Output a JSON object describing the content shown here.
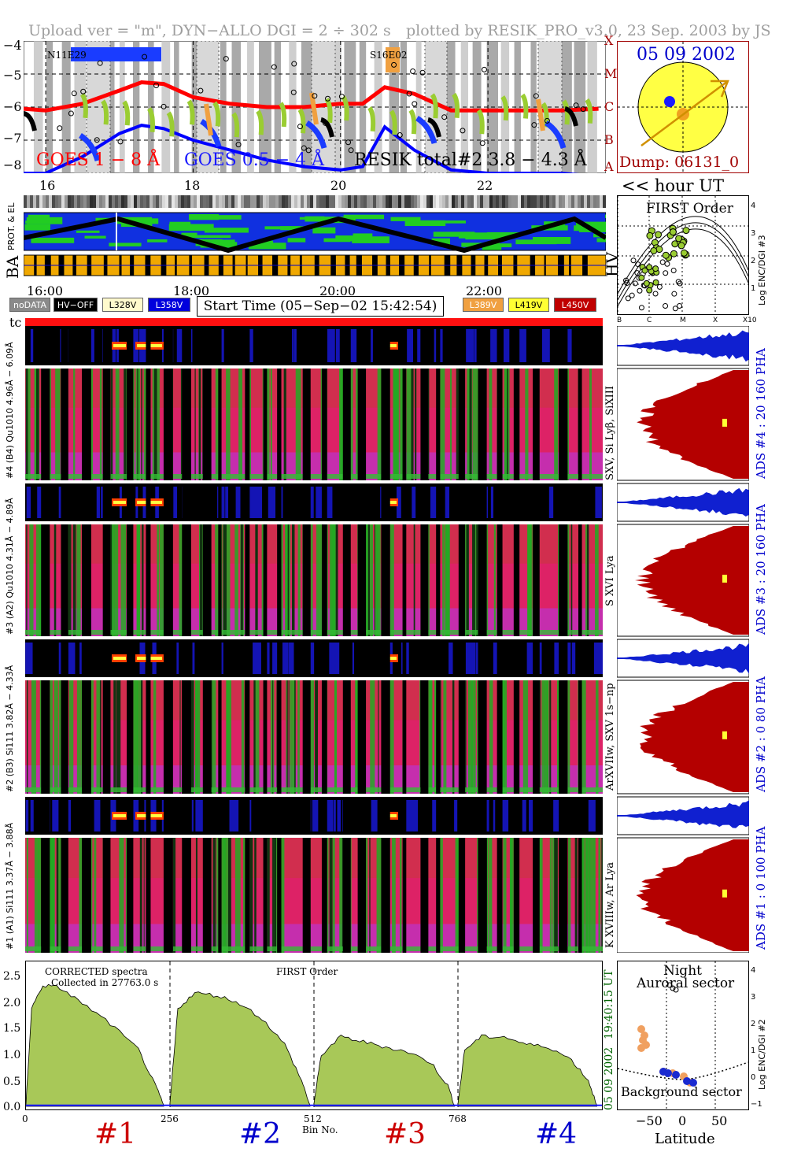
{
  "header": {
    "left": "Upload ver = \"m\", DYN−ALLO DGI =   2 ÷ 302 s",
    "right": "plotted by RESIK_PRO_v3.0, 23 Sep. 2003 by JS"
  },
  "goes_panel": {
    "y_ticks": [
      "−4",
      "−5",
      "−6",
      "−7",
      "−8"
    ],
    "flare_classes": [
      "X",
      "M",
      "C",
      "B",
      "A"
    ],
    "label_goes_long": "GOES 1 − 8 Å",
    "label_goes_short": "GOES 0.5 − 4 Å",
    "label_resik": "RESIK total#2  3.8 − 4.3 Å",
    "region_1": "N11E29",
    "region_2": "S16E02",
    "colors": {
      "goes_long": "#ff0000",
      "goes_short": "#0000ff",
      "resik": "#9acd32"
    }
  },
  "sun_panel": {
    "date": "05 09 2002",
    "dump": "Dump: 06131_0"
  },
  "hour_axis": {
    "labels": [
      "16",
      "18",
      "20",
      "22"
    ],
    "unit_label": "<< hour UT",
    "time_labels": [
      "16:00",
      "18:00",
      "20:00",
      "22:00"
    ]
  },
  "status_rows": {
    "prot_el": "PROT. & EL",
    "ba": "BA",
    "hv": "HV"
  },
  "legend": {
    "nodata": "noDATA",
    "hvoff": "HV−OFF",
    "v1": "L328V",
    "v2": "L358V",
    "start_time": "Start Time (05−Sep−02 15:42:54)",
    "v3": "L389V",
    "v4": "L419V",
    "v5": "L450V",
    "tc": "tc"
  },
  "first_order_panel": {
    "title": "FIRST Order",
    "ylabel": "Log ENC/DGI #3",
    "y_ticks": [
      "4",
      "3",
      "2",
      "1",
      "0"
    ],
    "x_ticks": [
      "B",
      "C",
      "M",
      "X",
      "X10"
    ]
  },
  "channels": [
    {
      "pha_label": "#4 (B4) Qu1010  4.96Å − 6.09Å",
      "spec_label": "SXV, Si Lyβ, SiXIII",
      "ads_label": "ADS #4 :   20  160   PHA"
    },
    {
      "pha_label": "#3 (A2) Qu1010  4.31Å − 4.89Å",
      "spec_label": "S XVI Lya",
      "ads_label": "ADS #3 :   20  160   PHA"
    },
    {
      "pha_label": "#2 (B3) Si111  3.82Å − 4.33Å",
      "spec_label": "ArXVIIw, SXV 1s−np",
      "ads_label": "ADS #2 :    0   80   PHA"
    },
    {
      "pha_label": "#1 (A1) Si111  3.37Å − 3.88Å",
      "spec_label": "K XVIIIw, Ar Lya",
      "ads_label": "ADS #1 :    0  100   PHA"
    }
  ],
  "spectrum_panel": {
    "note1": "CORRECTED spectra",
    "note2": "Collected in 27763.0 s",
    "title": "FIRST Order",
    "y_ticks": [
      "2.5",
      "2.0",
      "1.5",
      "1.0",
      "0.5",
      "0.0"
    ],
    "x_ticks": [
      "0",
      "256",
      "512",
      "768"
    ],
    "xlabel": "Bin No.",
    "side_date": "05 09 2002",
    "side_time": "19:40:15 UT",
    "channel_labels": [
      "#1",
      "#2",
      "#3",
      "#4"
    ],
    "channel_colors": [
      "#cc0000",
      "#0000cc",
      "#cc0000",
      "#0000cc"
    ]
  },
  "latitude_panel": {
    "top1": "Night",
    "top2": "Auroral sector",
    "bottom": "Background sector",
    "xlabel": "Latitude",
    "ylabel": "Log ENC/DGI #2",
    "x_ticks": [
      "−50",
      "0",
      "50"
    ],
    "y_ticks": [
      "4",
      "3",
      "2",
      "1",
      "0",
      "−1"
    ]
  },
  "chart_data": [
    {
      "type": "line",
      "title": "",
      "xlabel": "",
      "ylabel": "",
      "x": [
        15.7,
        16.0,
        16.5,
        17.0,
        17.3,
        17.6,
        18.0,
        18.5,
        19.0,
        19.5,
        20.0,
        20.3,
        20.6,
        21.0,
        21.5,
        22.0,
        22.5,
        23.0,
        23.5
      ],
      "ylim": [
        -8,
        -4
      ],
      "series": [
        {
          "name": "GOES 1 − 8 Å",
          "values": [
            -6.05,
            -6.1,
            -5.9,
            -5.5,
            -5.25,
            -5.3,
            -5.7,
            -5.9,
            -6.0,
            -6.0,
            -5.9,
            -5.9,
            -5.4,
            -5.6,
            -6.1,
            -6.1,
            -6.1,
            -6.1,
            -6.05
          ]
        },
        {
          "name": "GOES 0.5 − 4 Å",
          "values": [
            -8.0,
            -8.0,
            -7.5,
            -6.8,
            -6.55,
            -6.65,
            -7.0,
            -7.3,
            -7.6,
            -7.8,
            -7.9,
            -7.8,
            -6.6,
            -7.3,
            -7.9,
            -8.0,
            -8.0,
            -8.0,
            -8.1
          ]
        }
      ]
    },
    {
      "type": "area",
      "title": "FIRST Order",
      "xlabel": "Bin No.",
      "ylabel": "",
      "xlim": [
        0,
        1024
      ],
      "ylim": [
        0,
        2.75
      ],
      "series": [
        {
          "name": "#1",
          "x": [
            0,
            10,
            30,
            60,
            100,
            150,
            200,
            230,
            245
          ],
          "values": [
            0.05,
            1.9,
            2.35,
            2.3,
            2.0,
            1.6,
            1.1,
            0.4,
            0.02
          ]
        },
        {
          "name": "#2",
          "x": [
            256,
            270,
            300,
            340,
            380,
            420,
            460,
            490,
            505
          ],
          "values": [
            0.05,
            1.9,
            2.2,
            2.15,
            2.0,
            1.7,
            1.2,
            0.5,
            0.02
          ]
        },
        {
          "name": "#3",
          "x": [
            512,
            525,
            560,
            600,
            640,
            680,
            720,
            750,
            762
          ],
          "values": [
            0.05,
            1.0,
            1.35,
            1.25,
            1.15,
            1.05,
            0.85,
            0.4,
            0.02
          ]
        },
        {
          "name": "#4",
          "x": [
            768,
            780,
            810,
            850,
            890,
            930,
            970,
            1000,
            1015
          ],
          "values": [
            0.05,
            1.1,
            1.35,
            1.35,
            1.2,
            1.15,
            0.9,
            0.5,
            0.02
          ]
        }
      ]
    }
  ]
}
